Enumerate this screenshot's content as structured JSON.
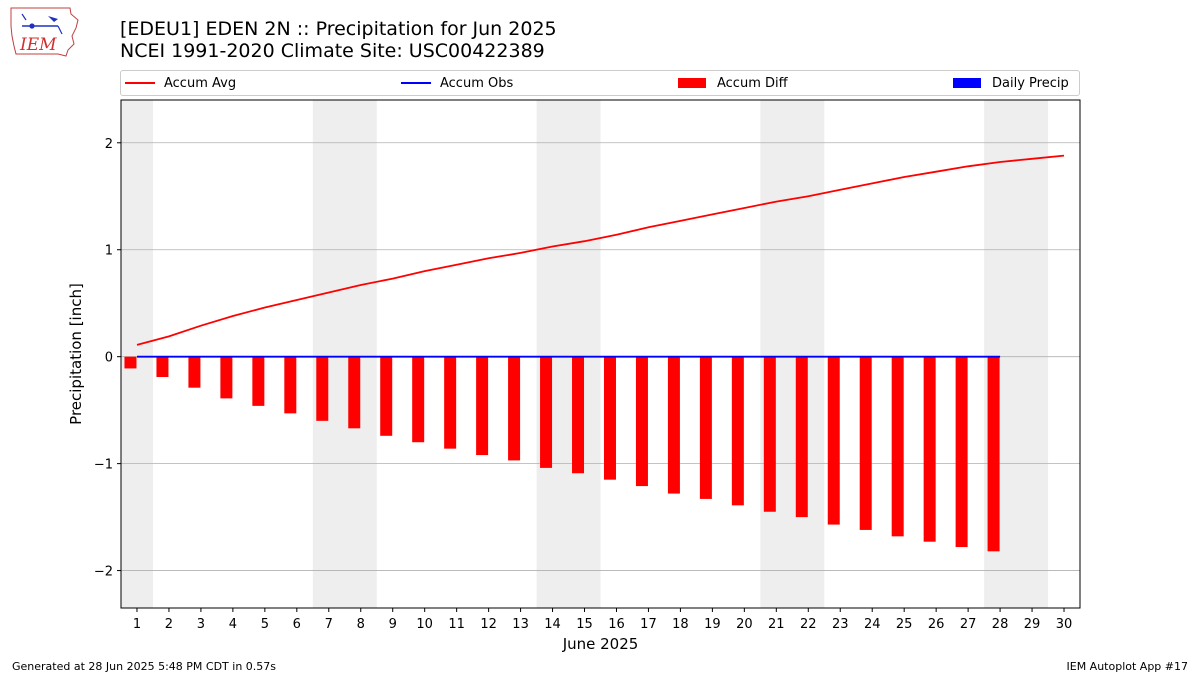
{
  "header": {
    "title_line1": "[EDEU1] EDEN 2N :: Precipitation for Jun 2025",
    "title_line2": "NCEI 1991-2020 Climate Site: USC00422389"
  },
  "logo": {
    "text": "IEM",
    "icon": "iem-iowa-logo-icon"
  },
  "legend": {
    "items": [
      {
        "label": "Accum Avg",
        "color": "#ff0000",
        "kind": "line"
      },
      {
        "label": "Accum Obs",
        "color": "#0000ff",
        "kind": "line"
      },
      {
        "label": "Accum Diff",
        "color": "#ff0000",
        "kind": "bar"
      },
      {
        "label": "Daily Precip",
        "color": "#0000ff",
        "kind": "bar"
      }
    ]
  },
  "chart_data": {
    "type": "bar",
    "xlabel": "June 2025",
    "ylabel": "Precipitation [inch]",
    "xlim": [
      0.5,
      30.5
    ],
    "ylim": [
      -2.35,
      2.4
    ],
    "yticks": [
      2,
      1,
      0,
      -1,
      -2
    ],
    "ytick_labels": [
      "2",
      "1",
      "0",
      "−1",
      "−2"
    ],
    "grid": "horizontal",
    "weekend_shading": [
      [
        0.5,
        1.5
      ],
      [
        6.5,
        8.5
      ],
      [
        13.5,
        15.5
      ],
      [
        20.5,
        22.5
      ],
      [
        27.5,
        29.5
      ]
    ],
    "days": [
      1,
      2,
      3,
      4,
      5,
      6,
      7,
      8,
      9,
      10,
      11,
      12,
      13,
      14,
      15,
      16,
      17,
      18,
      19,
      20,
      21,
      22,
      23,
      24,
      25,
      26,
      27,
      28,
      29,
      30
    ],
    "series": [
      {
        "name": "Accum Avg",
        "kind": "line",
        "color": "#ff0000",
        "x": [
          1,
          2,
          3,
          4,
          5,
          6,
          7,
          8,
          9,
          10,
          11,
          12,
          13,
          14,
          15,
          16,
          17,
          18,
          19,
          20,
          21,
          22,
          23,
          24,
          25,
          26,
          27,
          28,
          29,
          30
        ],
        "values": [
          0.11,
          0.19,
          0.29,
          0.38,
          0.46,
          0.53,
          0.6,
          0.67,
          0.73,
          0.8,
          0.86,
          0.92,
          0.97,
          1.03,
          1.08,
          1.14,
          1.21,
          1.27,
          1.33,
          1.39,
          1.45,
          1.5,
          1.56,
          1.62,
          1.68,
          1.73,
          1.78,
          1.82,
          1.85,
          1.88
        ]
      },
      {
        "name": "Accum Obs",
        "kind": "line",
        "color": "#0000ff",
        "x": [
          1,
          2,
          3,
          4,
          5,
          6,
          7,
          8,
          9,
          10,
          11,
          12,
          13,
          14,
          15,
          16,
          17,
          18,
          19,
          20,
          21,
          22,
          23,
          24,
          25,
          26,
          27,
          28
        ],
        "values": [
          0,
          0,
          0,
          0,
          0,
          0,
          0,
          0,
          0,
          0,
          0,
          0,
          0,
          0,
          0,
          0,
          0,
          0,
          0,
          0,
          0,
          0,
          0,
          0,
          0,
          0,
          0,
          0
        ]
      },
      {
        "name": "Accum Diff",
        "kind": "bar",
        "color": "#ff0000",
        "x": [
          1,
          2,
          3,
          4,
          5,
          6,
          7,
          8,
          9,
          10,
          11,
          12,
          13,
          14,
          15,
          16,
          17,
          18,
          19,
          20,
          21,
          22,
          23,
          24,
          25,
          26,
          27,
          28
        ],
        "values": [
          -0.11,
          -0.19,
          -0.29,
          -0.39,
          -0.46,
          -0.53,
          -0.6,
          -0.67,
          -0.74,
          -0.8,
          -0.86,
          -0.92,
          -0.97,
          -1.04,
          -1.09,
          -1.15,
          -1.21,
          -1.28,
          -1.33,
          -1.39,
          -1.45,
          -1.5,
          -1.57,
          -1.62,
          -1.68,
          -1.73,
          -1.78,
          -1.82
        ]
      },
      {
        "name": "Daily Precip",
        "kind": "bar",
        "color": "#0000ff",
        "x": [
          1,
          2,
          3,
          4,
          5,
          6,
          7,
          8,
          9,
          10,
          11,
          12,
          13,
          14,
          15,
          16,
          17,
          18,
          19,
          20,
          21,
          22,
          23,
          24,
          25,
          26,
          27,
          28
        ],
        "values": [
          0,
          0,
          0,
          0,
          0,
          0,
          0,
          0,
          0,
          0,
          0,
          0,
          0,
          0,
          0,
          0,
          0,
          0,
          0,
          0,
          0,
          0,
          0,
          0,
          0,
          0,
          0,
          0
        ]
      }
    ]
  },
  "footer": {
    "left": "Generated at 28 Jun 2025 5:48 PM CDT in 0.57s",
    "right": "IEM Autoplot App #17"
  }
}
